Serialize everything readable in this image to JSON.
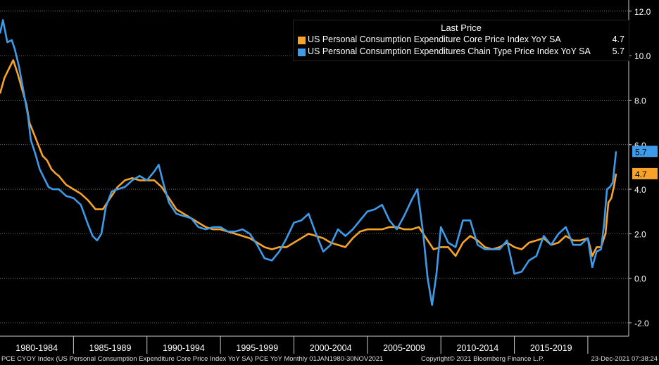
{
  "chart_data": {
    "type": "line",
    "x_range": [
      1980.0,
      2021.92
    ],
    "ylim": [
      -2.6,
      12.5
    ],
    "y_ticks": [
      "12.0",
      "10.0",
      "8.0",
      "6.0",
      "4.0",
      "2.0",
      "0.0",
      "-2.0"
    ],
    "x_tick_labels": [
      "1980-1984",
      "1985-1989",
      "1990-1994",
      "1995-1999",
      "2000-2004",
      "2005-2009",
      "2010-2014",
      "2015-2019"
    ],
    "legend": {
      "title": "Last Price",
      "placement": "top-right"
    },
    "series": [
      {
        "name": "US Personal Consumption Expenditure Core Price Index YoY SA",
        "last": "4.7",
        "color": "#f7a32a",
        "points": [
          [
            1980.0,
            8.3
          ],
          [
            1980.3,
            9.0
          ],
          [
            1980.6,
            9.4
          ],
          [
            1980.9,
            9.8
          ],
          [
            1981.2,
            9.2
          ],
          [
            1981.5,
            8.5
          ],
          [
            1981.8,
            7.8
          ],
          [
            1982.0,
            7.0
          ],
          [
            1982.3,
            6.5
          ],
          [
            1982.6,
            6.0
          ],
          [
            1982.9,
            5.5
          ],
          [
            1983.2,
            5.3
          ],
          [
            1983.5,
            4.9
          ],
          [
            1983.8,
            4.7
          ],
          [
            1984.0,
            4.6
          ],
          [
            1984.5,
            4.2
          ],
          [
            1985.0,
            4.0
          ],
          [
            1985.5,
            3.8
          ],
          [
            1986.0,
            3.5
          ],
          [
            1986.5,
            3.1
          ],
          [
            1987.0,
            3.1
          ],
          [
            1987.5,
            3.6
          ],
          [
            1988.0,
            4.1
          ],
          [
            1988.5,
            4.4
          ],
          [
            1989.0,
            4.5
          ],
          [
            1989.5,
            4.4
          ],
          [
            1990.0,
            4.4
          ],
          [
            1990.5,
            4.4
          ],
          [
            1991.0,
            4.1
          ],
          [
            1991.5,
            3.6
          ],
          [
            1992.0,
            3.1
          ],
          [
            1992.5,
            2.9
          ],
          [
            1993.0,
            2.7
          ],
          [
            1993.5,
            2.5
          ],
          [
            1994.0,
            2.3
          ],
          [
            1994.5,
            2.2
          ],
          [
            1995.0,
            2.2
          ],
          [
            1995.5,
            2.1
          ],
          [
            1996.0,
            2.0
          ],
          [
            1996.5,
            1.9
          ],
          [
            1997.0,
            1.8
          ],
          [
            1997.5,
            1.6
          ],
          [
            1998.0,
            1.4
          ],
          [
            1998.5,
            1.3
          ],
          [
            1999.0,
            1.4
          ],
          [
            1999.5,
            1.4
          ],
          [
            2000.0,
            1.6
          ],
          [
            2000.5,
            1.8
          ],
          [
            2001.0,
            2.0
          ],
          [
            2001.5,
            1.9
          ],
          [
            2002.0,
            1.8
          ],
          [
            2002.5,
            1.6
          ],
          [
            2003.0,
            1.5
          ],
          [
            2003.5,
            1.4
          ],
          [
            2004.0,
            1.8
          ],
          [
            2004.5,
            2.1
          ],
          [
            2005.0,
            2.2
          ],
          [
            2005.5,
            2.2
          ],
          [
            2006.0,
            2.2
          ],
          [
            2006.5,
            2.3
          ],
          [
            2007.0,
            2.3
          ],
          [
            2007.5,
            2.2
          ],
          [
            2008.0,
            2.2
          ],
          [
            2008.5,
            2.3
          ],
          [
            2009.0,
            1.8
          ],
          [
            2009.5,
            1.3
          ],
          [
            2010.0,
            1.4
          ],
          [
            2010.5,
            1.4
          ],
          [
            2011.0,
            1.0
          ],
          [
            2011.5,
            1.6
          ],
          [
            2012.0,
            1.9
          ],
          [
            2012.5,
            1.7
          ],
          [
            2013.0,
            1.4
          ],
          [
            2013.5,
            1.3
          ],
          [
            2014.0,
            1.4
          ],
          [
            2014.5,
            1.6
          ],
          [
            2015.0,
            1.4
          ],
          [
            2015.5,
            1.3
          ],
          [
            2016.0,
            1.6
          ],
          [
            2016.5,
            1.7
          ],
          [
            2017.0,
            1.8
          ],
          [
            2017.5,
            1.5
          ],
          [
            2018.0,
            1.6
          ],
          [
            2018.5,
            1.9
          ],
          [
            2019.0,
            1.7
          ],
          [
            2019.5,
            1.7
          ],
          [
            2020.0,
            1.8
          ],
          [
            2020.3,
            1.0
          ],
          [
            2020.6,
            1.4
          ],
          [
            2020.9,
            1.4
          ],
          [
            2021.2,
            2.0
          ],
          [
            2021.4,
            3.4
          ],
          [
            2021.6,
            3.6
          ],
          [
            2021.8,
            4.2
          ],
          [
            2021.92,
            4.7
          ]
        ]
      },
      {
        "name": "US Personal Consumption Expenditures Chain Type Price Index YoY SA",
        "last": "5.7",
        "color": "#3d9be9",
        "points": [
          [
            1980.0,
            11.0
          ],
          [
            1980.2,
            11.6
          ],
          [
            1980.5,
            10.6
          ],
          [
            1980.8,
            10.7
          ],
          [
            1981.0,
            10.3
          ],
          [
            1981.3,
            9.5
          ],
          [
            1981.6,
            8.4
          ],
          [
            1981.9,
            7.3
          ],
          [
            1982.1,
            6.2
          ],
          [
            1982.4,
            5.6
          ],
          [
            1982.7,
            4.9
          ],
          [
            1983.0,
            4.5
          ],
          [
            1983.3,
            4.1
          ],
          [
            1983.6,
            4.0
          ],
          [
            1984.0,
            4.0
          ],
          [
            1984.5,
            3.7
          ],
          [
            1985.0,
            3.6
          ],
          [
            1985.5,
            3.3
          ],
          [
            1986.0,
            2.4
          ],
          [
            1986.3,
            1.9
          ],
          [
            1986.6,
            1.7
          ],
          [
            1986.9,
            2.0
          ],
          [
            1987.2,
            3.2
          ],
          [
            1987.6,
            3.9
          ],
          [
            1988.0,
            4.0
          ],
          [
            1988.5,
            4.1
          ],
          [
            1989.0,
            4.4
          ],
          [
            1989.5,
            4.6
          ],
          [
            1990.0,
            4.4
          ],
          [
            1990.5,
            4.8
          ],
          [
            1990.8,
            5.1
          ],
          [
            1991.1,
            4.3
          ],
          [
            1991.5,
            3.4
          ],
          [
            1992.0,
            2.9
          ],
          [
            1992.5,
            2.8
          ],
          [
            1993.0,
            2.7
          ],
          [
            1993.5,
            2.3
          ],
          [
            1994.0,
            2.2
          ],
          [
            1994.5,
            2.3
          ],
          [
            1995.0,
            2.3
          ],
          [
            1995.5,
            2.1
          ],
          [
            1996.0,
            2.1
          ],
          [
            1996.5,
            2.2
          ],
          [
            1997.0,
            2.0
          ],
          [
            1997.5,
            1.5
          ],
          [
            1998.0,
            0.9
          ],
          [
            1998.5,
            0.8
          ],
          [
            1999.0,
            1.2
          ],
          [
            1999.5,
            1.8
          ],
          [
            2000.0,
            2.5
          ],
          [
            2000.5,
            2.6
          ],
          [
            2001.0,
            2.9
          ],
          [
            2001.5,
            2.0
          ],
          [
            2002.0,
            1.2
          ],
          [
            2002.5,
            1.5
          ],
          [
            2003.0,
            2.2
          ],
          [
            2003.5,
            1.9
          ],
          [
            2004.0,
            2.2
          ],
          [
            2004.5,
            2.6
          ],
          [
            2005.0,
            3.0
          ],
          [
            2005.5,
            3.1
          ],
          [
            2006.0,
            3.3
          ],
          [
            2006.5,
            2.6
          ],
          [
            2007.0,
            2.2
          ],
          [
            2007.5,
            2.8
          ],
          [
            2008.0,
            3.5
          ],
          [
            2008.4,
            4.0
          ],
          [
            2008.8,
            2.0
          ],
          [
            2009.1,
            0.0
          ],
          [
            2009.4,
            -1.2
          ],
          [
            2009.7,
            0.2
          ],
          [
            2010.0,
            2.3
          ],
          [
            2010.5,
            1.6
          ],
          [
            2011.0,
            1.4
          ],
          [
            2011.5,
            2.6
          ],
          [
            2012.0,
            2.6
          ],
          [
            2012.5,
            1.5
          ],
          [
            2013.0,
            1.3
          ],
          [
            2013.5,
            1.3
          ],
          [
            2014.0,
            1.3
          ],
          [
            2014.5,
            1.7
          ],
          [
            2015.0,
            0.2
          ],
          [
            2015.5,
            0.3
          ],
          [
            2016.0,
            0.8
          ],
          [
            2016.5,
            1.0
          ],
          [
            2017.0,
            1.9
          ],
          [
            2017.5,
            1.5
          ],
          [
            2018.0,
            2.0
          ],
          [
            2018.5,
            2.3
          ],
          [
            2019.0,
            1.5
          ],
          [
            2019.5,
            1.5
          ],
          [
            2020.0,
            1.8
          ],
          [
            2020.3,
            0.5
          ],
          [
            2020.6,
            1.2
          ],
          [
            2020.9,
            1.3
          ],
          [
            2021.1,
            2.4
          ],
          [
            2021.3,
            4.0
          ],
          [
            2021.5,
            4.1
          ],
          [
            2021.7,
            4.3
          ],
          [
            2021.92,
            5.7
          ]
        ]
      }
    ]
  },
  "footer": {
    "left": "PCE CYOY Index (US Personal Consumption Expenditure Core Price Index YoY SA) PCE YoY  Monthly 01JAN1980-30NOV2021",
    "center": "Copyright© 2021 Bloomberg Finance L.P.",
    "right": "23-Dec-2021 07:38:24"
  }
}
